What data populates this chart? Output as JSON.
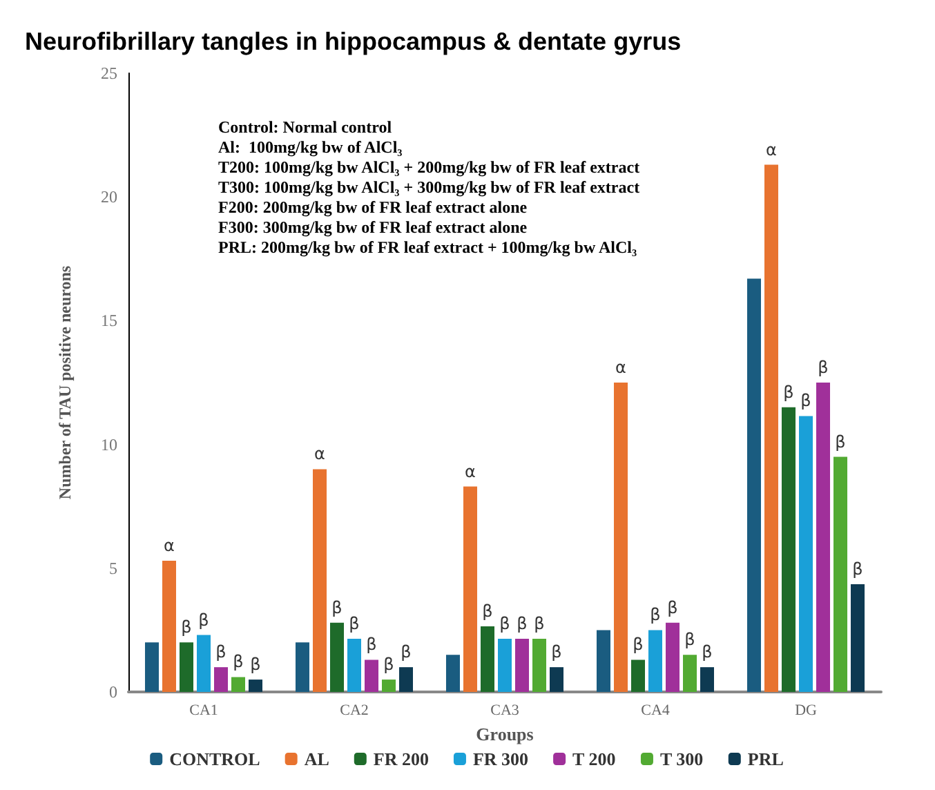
{
  "chart_data": {
    "type": "bar",
    "title": "Neurofibrillary tangles in hippocampus & dentate gyrus",
    "xlabel": "Groups",
    "ylabel": "Number of TAU positive neurons",
    "annotations": [
      "Control: Normal control",
      "Al:  100mg/kg bw of AlCl₃",
      "T200: 100mg/kg bw AlCl₃ + 200mg/kg bw of FR leaf extract",
      "T300: 100mg/kg bw AlCl₃ + 300mg/kg bw of FR leaf extract",
      "F200: 200mg/kg bw of FR leaf extract alone",
      "F300: 300mg/kg bw of FR leaf extract alone",
      "PRL: 200mg/kg bw of FR leaf extract + 100mg/kg bw AlCl₃"
    ],
    "categories": [
      "CA1",
      "CA2",
      "CA3",
      "CA4",
      "DG"
    ],
    "series": [
      {
        "name": "CONTROL",
        "color": "#1a5c80",
        "values": [
          2.0,
          2.0,
          1.5,
          2.5,
          16.7
        ]
      },
      {
        "name": "AL",
        "color": "#e8732f",
        "values": [
          5.3,
          9.0,
          8.3,
          12.5,
          21.3
        ],
        "value_labels": [
          "α",
          "α",
          "α",
          "α",
          "α"
        ]
      },
      {
        "name": "FR 200",
        "color": "#1e6b2a",
        "values": [
          2.0,
          2.8,
          2.65,
          1.3,
          11.5
        ],
        "value_labels": [
          "β",
          "β",
          "β",
          "β",
          "β"
        ]
      },
      {
        "name": "FR 300",
        "color": "#1aa0d8",
        "values": [
          2.3,
          2.15,
          2.15,
          2.5,
          11.15
        ],
        "value_labels": [
          "β",
          "β",
          "β",
          "β",
          "β"
        ]
      },
      {
        "name": "T 200",
        "color": "#a0309a",
        "values": [
          1.0,
          1.3,
          2.15,
          2.8,
          12.5
        ],
        "value_labels": [
          "β",
          "β",
          "β",
          "β",
          "β"
        ]
      },
      {
        "name": "T 300",
        "color": "#52aa32",
        "values": [
          0.6,
          0.5,
          2.15,
          1.5,
          9.5
        ],
        "value_labels": [
          "β",
          "β",
          "β",
          "β",
          "β"
        ]
      },
      {
        "name": "PRL",
        "color": "#0e3a52",
        "values": [
          0.5,
          1.0,
          1.0,
          1.0,
          4.35
        ],
        "value_labels": [
          "β",
          "β",
          "β",
          "β",
          "β"
        ]
      }
    ],
    "ylim": [
      0,
      25
    ],
    "yticks": [
      0,
      5,
      10,
      15,
      20,
      25
    ],
    "grid": false,
    "legend": "bottom"
  }
}
